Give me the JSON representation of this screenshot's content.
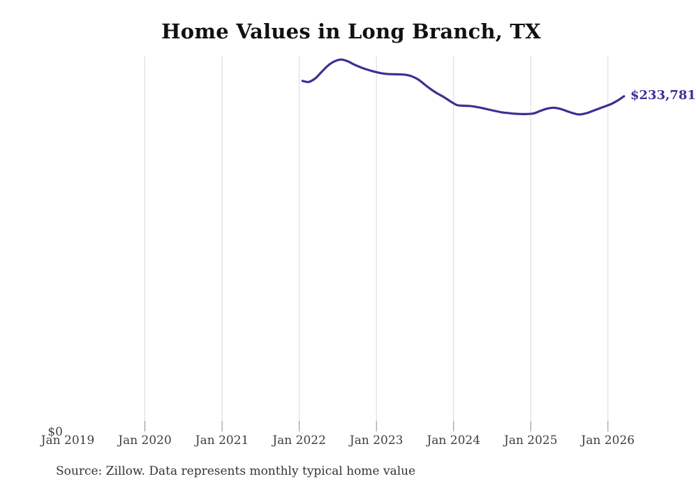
{
  "chart_data": {
    "type": "line",
    "title": "Home Values in Long Branch, TX",
    "source_note": "Source: Zillow. Data represents monthly typical home value",
    "end_label": "$233,781",
    "legend": "none",
    "grid": "vertical-only",
    "ylim": [
      0,
      261500
    ],
    "y_ticks": [
      {
        "label": "$0",
        "value": 0
      }
    ],
    "x_ticks": [
      {
        "label": "Jan 2019",
        "gridline": false
      },
      {
        "label": "Jan 2020",
        "gridline": true
      },
      {
        "label": "Jan 2021",
        "gridline": true
      },
      {
        "label": "Jan 2022",
        "gridline": true
      },
      {
        "label": "Jan 2023",
        "gridline": true
      },
      {
        "label": "Jan 2024",
        "gridline": true
      },
      {
        "label": "Jan 2025",
        "gridline": true
      },
      {
        "label": "Jan 2026",
        "gridline": true
      }
    ],
    "series": [
      {
        "name": "Monthly typical home value",
        "color": "#3a3192",
        "x": [
          "2022-01",
          "2022-02",
          "2022-03",
          "2022-04",
          "2022-05",
          "2022-06",
          "2022-07",
          "2022-08",
          "2022-09",
          "2022-10",
          "2022-11",
          "2022-12",
          "2023-01",
          "2023-02",
          "2023-03",
          "2023-04",
          "2023-05",
          "2023-06",
          "2023-07",
          "2023-08",
          "2023-09",
          "2023-10",
          "2023-11",
          "2023-12",
          "2024-01",
          "2024-02",
          "2024-03",
          "2024-04",
          "2024-05",
          "2024-06",
          "2024-07",
          "2024-08",
          "2024-09",
          "2024-10",
          "2024-11",
          "2024-12",
          "2025-01",
          "2025-02",
          "2025-03",
          "2025-04",
          "2025-05",
          "2025-06",
          "2025-07",
          "2025-08",
          "2025-09",
          "2025-10",
          "2025-11",
          "2025-12",
          "2026-01",
          "2026-02",
          "2026-03"
        ],
        "values": [
          244500,
          243800,
          246300,
          250900,
          255300,
          258200,
          259400,
          258300,
          256000,
          254100,
          252500,
          251200,
          250100,
          249400,
          249200,
          249100,
          248800,
          247700,
          245500,
          242000,
          238600,
          235700,
          233200,
          230300,
          227700,
          227200,
          227000,
          226400,
          225500,
          224500,
          223500,
          222600,
          222100,
          221600,
          221400,
          221400,
          221900,
          223600,
          225100,
          225800,
          225100,
          223600,
          222100,
          221100,
          221800,
          223300,
          225000,
          226700,
          228400,
          230800,
          233781
        ]
      }
    ]
  }
}
